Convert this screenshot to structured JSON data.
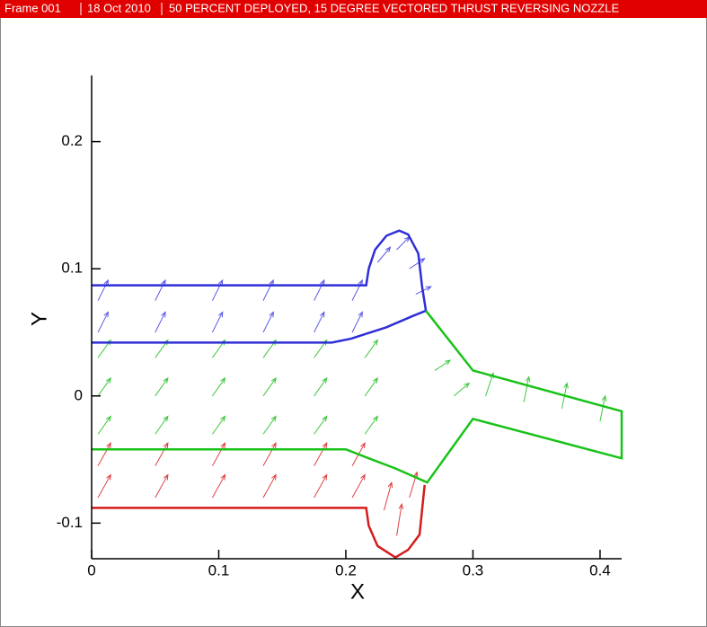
{
  "chart_data": {
    "type": "vector",
    "frame": "Frame 001",
    "date": "18 Oct 2010",
    "title": "50 PERCENT DEPLOYED, 15 DEGREE VECTORED THRUST REVERSING NOZZLE",
    "x_label": "X",
    "y_label": "Y",
    "xlim": [
      0,
      0.417
    ],
    "ylim": [
      -0.128,
      0.252
    ],
    "xticks": [
      0,
      0.1,
      0.2,
      0.3,
      0.4
    ],
    "yticks": [
      -0.1,
      0,
      0.1,
      0.2
    ],
    "lines": [
      {
        "color": "#2e2ed6",
        "x": [
          0,
          0.216,
          0.218,
          0.223,
          0.232,
          0.242,
          0.249,
          0.257,
          0.26,
          0.263
        ],
        "y": [
          0.087,
          0.087,
          0.1,
          0.115,
          0.126,
          0.13,
          0.127,
          0.112,
          0.086,
          0.067
        ]
      },
      {
        "color": "#2e2ed6",
        "x": [
          0,
          0.189,
          0.204,
          0.232,
          0.253,
          0.263
        ],
        "y": [
          0.042,
          0.042,
          0.045,
          0.054,
          0.063,
          0.067
        ]
      },
      {
        "color": "#19c219",
        "x": [
          0.263,
          0.3,
          0.417,
          0.417,
          0.3,
          0.264,
          0.239,
          0.218,
          0.2,
          0
        ],
        "y": [
          0.067,
          0.02,
          -0.012,
          -0.049,
          -0.018,
          -0.068,
          -0.057,
          -0.049,
          -0.042,
          -0.042
        ]
      },
      {
        "color": "#d41c1c",
        "x": [
          0,
          0.216,
          0.218,
          0.225,
          0.239,
          0.249,
          0.258,
          0.262
        ],
        "y": [
          -0.088,
          -0.088,
          -0.102,
          -0.118,
          -0.127,
          -0.121,
          -0.109,
          -0.07
        ]
      }
    ],
    "vectors": [
      {
        "color": "#5a5ae6",
        "x": [
          0.005,
          0.05,
          0.095,
          0.135,
          0.175,
          0.205,
          0.005,
          0.05,
          0.095,
          0.135,
          0.175,
          0.205,
          0.225,
          0.24,
          0.25,
          0.255
        ],
        "y": [
          0.05,
          0.05,
          0.05,
          0.05,
          0.05,
          0.05,
          0.075,
          0.075,
          0.075,
          0.075,
          0.075,
          0.075,
          0.105,
          0.115,
          0.1,
          0.08
        ],
        "u": [
          0.008,
          0.008,
          0.008,
          0.008,
          0.008,
          0.008,
          0.008,
          0.008,
          0.008,
          0.008,
          0.008,
          0.008,
          0.01,
          0.01,
          0.012,
          0.012
        ],
        "v": [
          0.016,
          0.016,
          0.016,
          0.016,
          0.016,
          0.016,
          0.016,
          0.016,
          0.016,
          0.016,
          0.016,
          0.016,
          0.012,
          0.01,
          0.008,
          0.006
        ]
      },
      {
        "color": "#3cc83c",
        "x": [
          0.005,
          0.05,
          0.095,
          0.135,
          0.175,
          0.215,
          0.005,
          0.05,
          0.095,
          0.135,
          0.175,
          0.215,
          0.005,
          0.05,
          0.095,
          0.135,
          0.175,
          0.215,
          0.27,
          0.285,
          0.31,
          0.34,
          0.37,
          0.4
        ],
        "y": [
          -0.03,
          -0.03,
          -0.03,
          -0.03,
          -0.03,
          -0.03,
          0,
          0,
          0,
          0,
          0,
          0,
          0.03,
          0.03,
          0.03,
          0.03,
          0.03,
          0.03,
          0.02,
          0,
          0,
          -0.005,
          -0.01,
          -0.02
        ],
        "u": [
          0.01,
          0.01,
          0.01,
          0.01,
          0.01,
          0.01,
          0.01,
          0.01,
          0.01,
          0.01,
          0.01,
          0.01,
          0.01,
          0.01,
          0.01,
          0.01,
          0.01,
          0.01,
          0.012,
          0.012,
          0.006,
          0.004,
          0.004,
          0.004
        ],
        "v": [
          0.014,
          0.014,
          0.014,
          0.014,
          0.014,
          0.014,
          0.014,
          0.014,
          0.014,
          0.014,
          0.014,
          0.014,
          0.014,
          0.014,
          0.014,
          0.014,
          0.014,
          0.014,
          0.008,
          0.01,
          0.018,
          0.02,
          0.02,
          0.02
        ]
      },
      {
        "color": "#e04040",
        "x": [
          0.005,
          0.05,
          0.095,
          0.135,
          0.175,
          0.205,
          0.005,
          0.05,
          0.095,
          0.135,
          0.175,
          0.205,
          0.23,
          0.24,
          0.25
        ],
        "y": [
          -0.08,
          -0.08,
          -0.08,
          -0.08,
          -0.08,
          -0.08,
          -0.055,
          -0.055,
          -0.055,
          -0.055,
          -0.055,
          -0.055,
          -0.09,
          -0.11,
          -0.08
        ],
        "u": [
          0.01,
          0.01,
          0.01,
          0.01,
          0.01,
          0.01,
          0.01,
          0.01,
          0.01,
          0.01,
          0.01,
          0.01,
          0.006,
          0.004,
          0.006
        ],
        "v": [
          0.018,
          0.018,
          0.018,
          0.018,
          0.018,
          0.018,
          0.018,
          0.018,
          0.018,
          0.018,
          0.018,
          0.018,
          0.022,
          0.025,
          0.02
        ]
      }
    ]
  }
}
